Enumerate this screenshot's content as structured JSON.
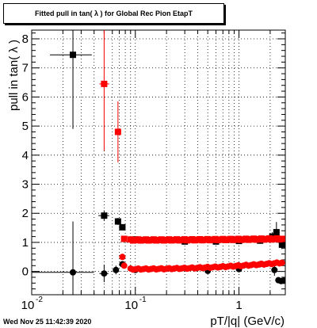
{
  "title_text": "Fitted pull in tan( λ ) for Global Rec Pion EtapT",
  "footer_stamp": "Wed Nov 25 11:42:39 2020",
  "chart_data": {
    "type": "scatter",
    "title": "Fitted pull in tan( λ ) for Global Rec Pion EtapT",
    "xlabel": "pT/|q| (GeV/c)",
    "ylabel": "pull in tan( λ )",
    "xscale": "log",
    "xlim": [
      0.01,
      2.8
    ],
    "ylim": [
      -0.8,
      8.3
    ],
    "yticks_labeled": [
      0,
      1,
      2,
      3,
      4,
      5,
      6,
      7,
      8
    ],
    "xticks_labeled": [
      {
        "value": 0.01,
        "label": "10^-2"
      },
      {
        "value": 0.1,
        "label": "10^-1"
      },
      {
        "value": 1,
        "label": "1"
      }
    ],
    "grid": true,
    "series": [
      {
        "role": "sigma",
        "color": "#000000",
        "marker": "square",
        "points": [
          {
            "x": 0.025,
            "y": 7.45,
            "xerr": [
              0.015,
              0.038
            ],
            "yerr": 2.55
          },
          {
            "x": 0.05,
            "y": 1.92,
            "xerr": [
              0.044,
              0.056
            ],
            "yerr": 0.18
          },
          {
            "x": 0.068,
            "y": 1.72,
            "xerr": [
              0.064,
              0.072
            ],
            "yerr": 0.12
          },
          {
            "x": 0.075,
            "y": 1.52,
            "xerr": [
              0.072,
              0.078
            ],
            "yerr": 0.08
          },
          {
            "x": 0.1,
            "y": 1.1,
            "xerr": [
              0.098,
              0.102
            ],
            "yerr": 0.04
          },
          {
            "x": 0.3,
            "y": 1.03,
            "xerr": [
              0.297,
              0.303
            ],
            "yerr": 0.03
          },
          {
            "x": 0.6,
            "y": 1.03,
            "xerr": [
              0.595,
              0.605
            ],
            "yerr": 0.03
          },
          {
            "x": 1.0,
            "y": 1.05,
            "xerr": [
              0.99,
              1.01
            ],
            "yerr": 0.04
          },
          {
            "x": 1.6,
            "y": 1.06,
            "xerr": [
              1.58,
              1.62
            ],
            "yerr": 0.05
          },
          {
            "x": 2.1,
            "y": 1.2,
            "xerr": [
              2.05,
              2.15
            ],
            "yerr": 0.15
          },
          {
            "x": 2.3,
            "y": 1.35,
            "xerr": [
              2.25,
              2.35
            ],
            "yerr": 0.35
          },
          {
            "x": 2.6,
            "y": 0.92,
            "xerr": [
              2.5,
              2.75
            ],
            "yerr": 0.15
          }
        ]
      },
      {
        "role": "mean",
        "color": "#000000",
        "marker": "circle",
        "points": [
          {
            "x": 0.025,
            "y": -0.03,
            "xerr": [
              0.008,
              0.04
            ],
            "yerr": 1.75
          },
          {
            "x": 0.05,
            "y": -0.07,
            "xerr": [
              0.045,
              0.055
            ],
            "yerr": 0.3
          },
          {
            "x": 0.065,
            "y": 0.05,
            "xerr": [
              0.062,
              0.068
            ],
            "yerr": 0.15
          },
          {
            "x": 0.075,
            "y": 0.25,
            "xerr": [
              0.072,
              0.078
            ],
            "yerr": 0.08
          },
          {
            "x": 0.1,
            "y": 0.05,
            "xerr": [
              0.098,
              0.102
            ],
            "yerr": 0.05
          },
          {
            "x": 0.5,
            "y": 0.02,
            "xerr": [
              0.49,
              0.51
            ],
            "yerr": 0.03
          },
          {
            "x": 1.0,
            "y": 0.08,
            "xerr": [
              0.99,
              1.01
            ],
            "yerr": 0.04
          },
          {
            "x": 1.6,
            "y": 0.25,
            "xerr": [
              1.58,
              1.62
            ],
            "yerr": 0.05
          },
          {
            "x": 2.2,
            "y": 0.05,
            "xerr": [
              2.15,
              2.25
            ],
            "yerr": 0.2
          },
          {
            "x": 2.4,
            "y": -0.3,
            "xerr": [
              2.35,
              2.45
            ],
            "yerr": 0.1
          },
          {
            "x": 2.55,
            "y": -0.33,
            "xerr": [
              2.48,
              2.65
            ],
            "yerr": 0.1
          },
          {
            "x": 2.7,
            "y": -0.32,
            "xerr": [
              2.65,
              2.78
            ],
            "yerr": 0.1
          }
        ]
      },
      {
        "role": "sigma",
        "color": "#ff0000",
        "marker": "square",
        "dense_range": {
          "from": 0.09,
          "to": 2.6,
          "y_start": 1.08,
          "y_end": 1.12,
          "n": 60
        },
        "points": [
          {
            "x": 0.05,
            "y": 6.45,
            "xerr": [
              0.045,
              0.056
            ],
            "yerr": 2.3
          },
          {
            "x": 0.068,
            "y": 4.8,
            "xerr": [
              0.064,
              0.072
            ],
            "yerr": 1.05
          },
          {
            "x": 0.078,
            "y": 1.12,
            "xerr": [
              0.075,
              0.081
            ],
            "yerr": 0.06
          }
        ]
      },
      {
        "role": "mean",
        "color": "#ff0000",
        "marker": "circle",
        "dense_range": {
          "from": 0.09,
          "to": 2.6,
          "y_start": 0.08,
          "y_end": 0.3,
          "n": 60
        },
        "points": [
          {
            "x": 0.075,
            "y": 0.5,
            "xerr": [
              0.072,
              0.078
            ],
            "yerr": 0.06
          },
          {
            "x": 0.078,
            "y": 0.2,
            "xerr": [
              0.075,
              0.081
            ],
            "yerr": 0.05
          }
        ]
      }
    ]
  }
}
